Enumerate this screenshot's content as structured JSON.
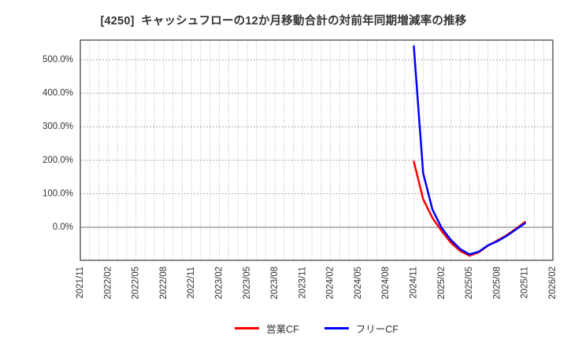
{
  "figure": {
    "background": "#ffffff",
    "text_color": "#333333",
    "grid_color": "#aaaaaa",
    "zero_line_color": "#8c8c8c",
    "border_color": "#3a3a3a"
  },
  "chart_data": {
    "type": "line",
    "title": "[4250]  キャッシュフローの12か月移動合計の対前年同期増減率の推移",
    "xlabel": "",
    "ylabel": "",
    "grid": true,
    "legend_position": "bottom-center",
    "ylim": [
      -98.6,
      558.7
    ],
    "y_ticks": [
      {
        "label": "500.0%",
        "value": 500
      },
      {
        "label": "400.0%",
        "value": 400
      },
      {
        "label": "300.0%",
        "value": 300
      },
      {
        "label": "200.0%",
        "value": 200
      },
      {
        "label": "100.0%",
        "value": 100
      },
      {
        "label": "0.0%",
        "value": 0
      }
    ],
    "x_tick_labels": [
      "2021/11",
      "2022/02",
      "2022/05",
      "2022/08",
      "2022/11",
      "2023/02",
      "2023/05",
      "2023/08",
      "2023/11",
      "2024/02",
      "2024/05",
      "2024/08",
      "2024/11",
      "2025/02",
      "2025/05",
      "2025/08",
      "2025/11",
      "2026/02"
    ],
    "x_tick_step_months": 3,
    "x_total_months": 51,
    "x_axis_start": "2021/11",
    "x_axis_end": "2026/02",
    "data_months": [
      "2024/11",
      "2024/12",
      "2025/01",
      "2025/02",
      "2025/03",
      "2025/04",
      "2025/05",
      "2025/06",
      "2025/07",
      "2025/08",
      "2025/09",
      "2025/10",
      "2025/11"
    ],
    "series": [
      {
        "id": "operating-cf",
        "name": "営業CF",
        "color": "#ff0000",
        "start_month_index": 36,
        "values": [
          196,
          84,
          28,
          -11,
          -46,
          -71,
          -85,
          -75,
          -55,
          -40,
          -24,
          -5,
          16
        ]
      },
      {
        "id": "free-cf",
        "name": "フリーCF",
        "color": "#0000ff",
        "start_month_index": 36,
        "values": [
          540,
          162,
          53,
          -2,
          -38,
          -65,
          -81,
          -73,
          -54,
          -42,
          -26,
          -7,
          12
        ]
      }
    ]
  }
}
